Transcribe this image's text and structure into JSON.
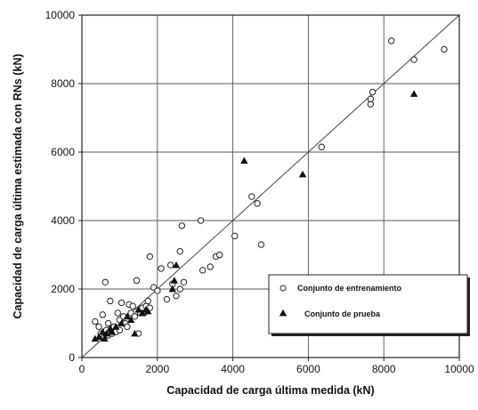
{
  "chart_data": {
    "type": "scatter",
    "xlabel": "Capacidad de carga última medida (kN)",
    "ylabel": "Capacidad de carga última estimada con RNs (kN)",
    "xlim": [
      0,
      10000
    ],
    "ylim": [
      0,
      10000
    ],
    "x_ticks": [
      "0",
      "2000",
      "4000",
      "6000",
      "8000",
      "10000"
    ],
    "y_ticks": [
      "0",
      "2000",
      "4000",
      "6000",
      "8000",
      "10000"
    ],
    "grid": true,
    "reference_line": {
      "x": [
        0,
        10000
      ],
      "y": [
        0,
        10000
      ]
    },
    "legend_position": "bottom-right",
    "series": [
      {
        "name": "Conjunto de entrenamiento",
        "marker": "open-circle",
        "color": "#222222",
        "points": [
          [
            350,
            1050
          ],
          [
            450,
            900
          ],
          [
            500,
            700
          ],
          [
            550,
            1250
          ],
          [
            600,
            600
          ],
          [
            620,
            2200
          ],
          [
            650,
            800
          ],
          [
            700,
            650
          ],
          [
            700,
            1000
          ],
          [
            750,
            1650
          ],
          [
            800,
            700
          ],
          [
            850,
            900
          ],
          [
            900,
            750
          ],
          [
            950,
            1300
          ],
          [
            1000,
            1100
          ],
          [
            1000,
            800
          ],
          [
            1050,
            1600
          ],
          [
            1100,
            1200
          ],
          [
            1150,
            1000
          ],
          [
            1200,
            900
          ],
          [
            1250,
            1550
          ],
          [
            1300,
            1300
          ],
          [
            1350,
            1500
          ],
          [
            1400,
            1200
          ],
          [
            1450,
            2250
          ],
          [
            1500,
            700
          ],
          [
            1550,
            1300
          ],
          [
            1600,
            1450
          ],
          [
            1650,
            1300
          ],
          [
            1700,
            1500
          ],
          [
            1750,
            1650
          ],
          [
            1800,
            1450
          ],
          [
            1800,
            2950
          ],
          [
            1900,
            2050
          ],
          [
            2000,
            1950
          ],
          [
            2100,
            2600
          ],
          [
            2250,
            1700
          ],
          [
            2350,
            2700
          ],
          [
            2400,
            2150
          ],
          [
            2500,
            1800
          ],
          [
            2600,
            2000
          ],
          [
            2600,
            3100
          ],
          [
            2650,
            3850
          ],
          [
            2700,
            2200
          ],
          [
            3150,
            4000
          ],
          [
            3200,
            2550
          ],
          [
            3400,
            2650
          ],
          [
            3550,
            2950
          ],
          [
            3650,
            3000
          ],
          [
            4050,
            3550
          ],
          [
            4500,
            4700
          ],
          [
            4650,
            4500
          ],
          [
            4750,
            3300
          ],
          [
            6350,
            6150
          ],
          [
            7650,
            7400
          ],
          [
            7650,
            7550
          ],
          [
            7700,
            7750
          ],
          [
            8200,
            9250
          ],
          [
            8800,
            8700
          ],
          [
            9600,
            9000
          ]
        ]
      },
      {
        "name": "Conjunto de prueba",
        "marker": "filled-triangle",
        "color": "#111111",
        "points": [
          [
            350,
            550
          ],
          [
            450,
            600
          ],
          [
            550,
            750
          ],
          [
            600,
            550
          ],
          [
            650,
            700
          ],
          [
            750,
            850
          ],
          [
            800,
            750
          ],
          [
            900,
            900
          ],
          [
            1050,
            1000
          ],
          [
            1200,
            1200
          ],
          [
            1300,
            1100
          ],
          [
            1400,
            700
          ],
          [
            1500,
            1400
          ],
          [
            1600,
            1300
          ],
          [
            1700,
            1400
          ],
          [
            1750,
            1350
          ],
          [
            2400,
            2000
          ],
          [
            2450,
            2250
          ],
          [
            2500,
            2700
          ],
          [
            4300,
            5750
          ],
          [
            5850,
            5350
          ],
          [
            8800,
            7700
          ]
        ]
      }
    ]
  }
}
